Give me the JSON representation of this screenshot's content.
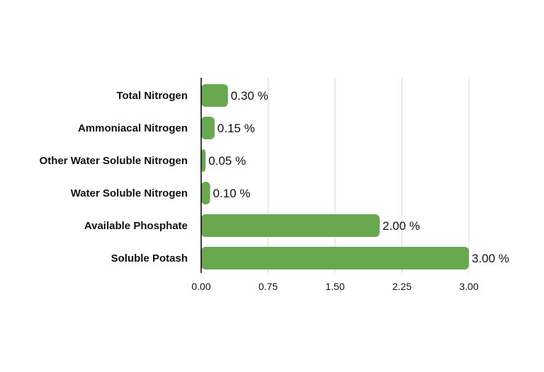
{
  "chart_data": {
    "type": "bar",
    "orientation": "horizontal",
    "categories": [
      "Total Nitrogen",
      "Ammoniacal Nitrogen",
      "Other Water Soluble Nitrogen",
      "Water Soluble Nitrogen",
      "Available Phosphate",
      "Soluble Potash"
    ],
    "values": [
      0.3,
      0.15,
      0.05,
      0.1,
      2.0,
      3.0
    ],
    "data_labels": [
      "0.30 %",
      "0.15 %",
      "0.05 %",
      "0.10 %",
      "2.00 %",
      "3.00 %"
    ],
    "xlim": [
      0,
      3.0
    ],
    "x_ticks": [
      0.0,
      0.75,
      1.5,
      2.25,
      3.0
    ],
    "x_tick_labels": [
      "0.00",
      "0.75",
      "1.50",
      "2.25",
      "3.00"
    ],
    "title": "",
    "xlabel": "",
    "ylabel": "",
    "grid": "vertical",
    "legend": "none",
    "bar_color": "#6aa84f"
  }
}
